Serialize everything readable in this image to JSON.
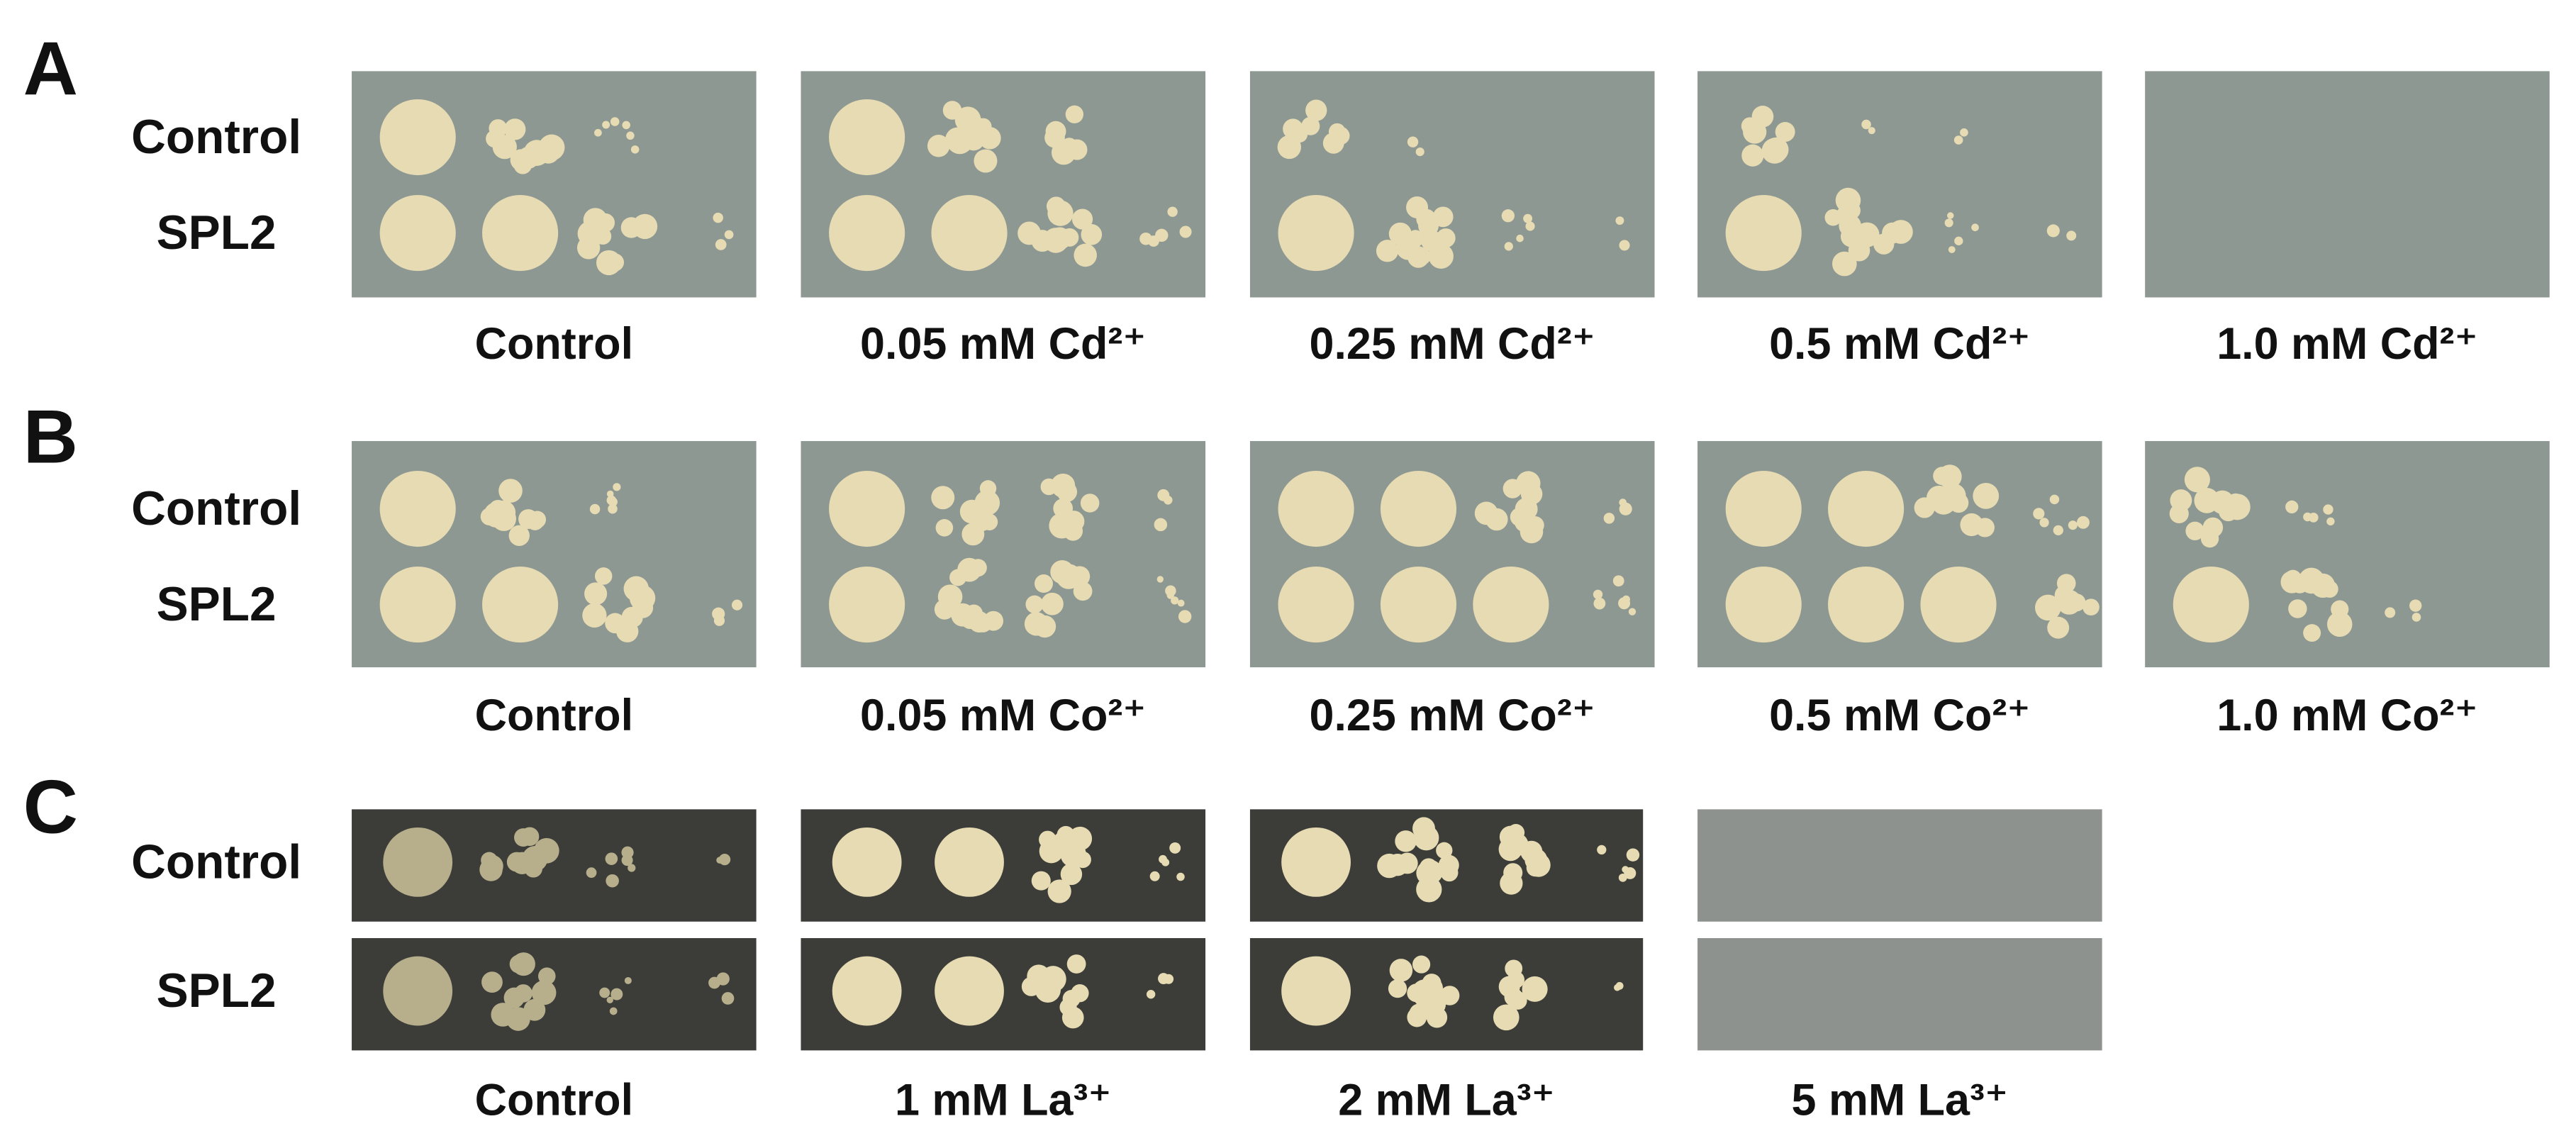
{
  "panels": [
    {
      "label": "A",
      "rows": [
        "Control",
        "SPL2"
      ],
      "plates": [
        "Control",
        "0.05 mM Cd²⁺",
        "0.25 mM Cd²⁺",
        "0.5 mM Cd²⁺",
        "1.0 mM Cd²⁺"
      ]
    },
    {
      "label": "B",
      "rows": [
        "Control",
        "SPL2"
      ],
      "plates": [
        "Control",
        "0.05 mM Co²⁺",
        "0.25 mM Co²⁺",
        "0.5 mM Co²⁺",
        "1.0 mM Co²⁺"
      ]
    },
    {
      "label": "C",
      "rows": [
        "Control",
        "SPL2"
      ],
      "plates": [
        "Control",
        "1 mM La³⁺",
        "2 mM La³⁺",
        "5 mM La³⁺"
      ]
    }
  ]
}
